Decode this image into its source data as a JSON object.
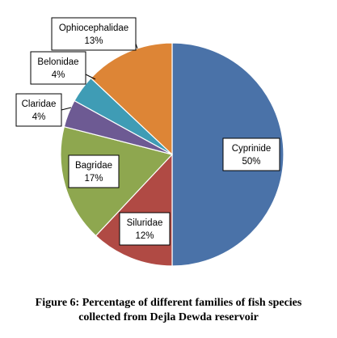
{
  "chart_data": {
    "type": "pie",
    "slices": [
      {
        "label": "Cyprinide",
        "value": 50,
        "value_text": "50%",
        "color": "#4a72a8"
      },
      {
        "label": "Siluridae",
        "value": 12,
        "value_text": "12%",
        "color": "#b04a44"
      },
      {
        "label": "Bagridae",
        "value": 17,
        "value_text": "17%",
        "color": "#8ea74f"
      },
      {
        "label": "Claridae",
        "value": 4,
        "value_text": "4%",
        "color": "#6d5a93"
      },
      {
        "label": "Belonidae",
        "value": 4,
        "value_text": "4%",
        "color": "#3f9cb5"
      },
      {
        "label": "Ophiocephalidae",
        "value": 13,
        "value_text": "13%",
        "color": "#dd8536"
      }
    ],
    "start_angle_deg": 0,
    "direction": "clockwise"
  },
  "caption": {
    "line1": "Figure 6: Percentage of different families of fish species",
    "line2": "collected  from Dejla Dewda reservoir"
  }
}
